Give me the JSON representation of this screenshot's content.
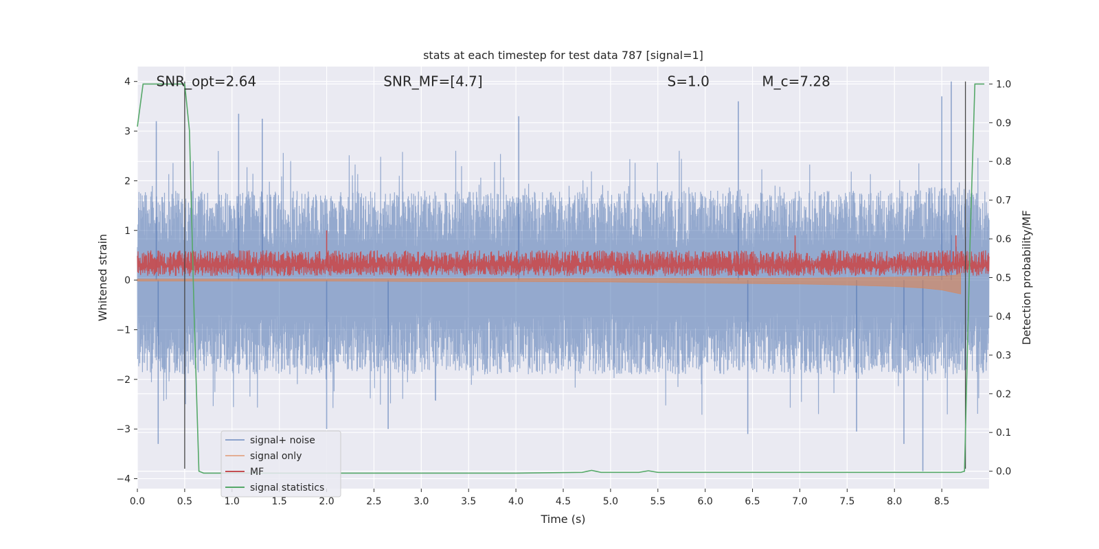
{
  "chart_data": {
    "type": "line",
    "title": "stats at each timestep for test data 787 [signal=1]",
    "xlabel": "Time (s)",
    "ylabel": "Whitened strain",
    "y2label": "Detection probability/MF",
    "xlim": [
      0.0,
      9.0
    ],
    "ylim": [
      -4.2,
      4.3
    ],
    "y2lim": [
      -0.045,
      1.045
    ],
    "x_ticks": [
      "0.0",
      "0.5",
      "1.0",
      "1.5",
      "2.0",
      "2.5",
      "3.0",
      "3.5",
      "4.0",
      "4.5",
      "5.0",
      "5.5",
      "6.0",
      "6.5",
      "7.0",
      "7.5",
      "8.0",
      "8.5"
    ],
    "y_ticks": [
      "4",
      "3",
      "2",
      "1",
      "0",
      "−1",
      "−2",
      "−3",
      "−4"
    ],
    "y2_ticks": [
      "1.0",
      "0.9",
      "0.8",
      "0.7",
      "0.6",
      "0.5",
      "0.4",
      "0.3",
      "0.2",
      "0.1",
      "0.0"
    ],
    "grid": true,
    "legend_position": "lower-left",
    "annotations": [
      {
        "text": "SNR_opt=2.64",
        "x": 0.2,
        "y": 4.0
      },
      {
        "text": "SNR_MF=[4.7]",
        "x": 2.6,
        "y": 4.0
      },
      {
        "text": "S=1.0",
        "x": 5.6,
        "y": 4.0
      },
      {
        "text": "M_c=7.28",
        "x": 6.6,
        "y": 4.0
      }
    ],
    "vlines": [
      {
        "x": 0.5,
        "y_from": -3.8,
        "y_to": 4.0
      },
      {
        "x": 8.75,
        "y_from": -3.8,
        "y_to": 4.0
      }
    ],
    "series": [
      {
        "name": "signal+ noise",
        "color": "#4c72b0",
        "axis": "left",
        "style": "noise envelope",
        "x": [
          0.0,
          0.5,
          1.0,
          1.5,
          2.0,
          2.5,
          3.0,
          3.5,
          4.0,
          4.5,
          5.0,
          5.5,
          6.0,
          6.5,
          7.0,
          7.5,
          8.0,
          8.5,
          9.0
        ],
        "upper": [
          1.8,
          1.8,
          1.8,
          1.8,
          1.8,
          1.8,
          1.8,
          1.8,
          1.8,
          1.8,
          1.8,
          1.8,
          1.8,
          1.8,
          1.8,
          1.8,
          1.8,
          1.9,
          1.8
        ],
        "lower": [
          -1.9,
          -1.9,
          -1.9,
          -1.9,
          -1.9,
          -1.9,
          -1.9,
          -1.9,
          -1.9,
          -1.9,
          -1.9,
          -1.9,
          -1.9,
          -1.9,
          -1.9,
          -1.9,
          -1.9,
          -1.9,
          -1.9
        ],
        "peaks": [
          {
            "x": 0.2,
            "y": 3.2
          },
          {
            "x": 0.22,
            "y": -3.3
          },
          {
            "x": 1.07,
            "y": 3.35
          },
          {
            "x": 1.32,
            "y": 3.25
          },
          {
            "x": 2.0,
            "y": -3.0
          },
          {
            "x": 2.65,
            "y": -3.0
          },
          {
            "x": 4.03,
            "y": 3.3
          },
          {
            "x": 6.35,
            "y": 3.6
          },
          {
            "x": 6.45,
            "y": -3.1
          },
          {
            "x": 7.6,
            "y": -3.05
          },
          {
            "x": 8.1,
            "y": -3.3
          },
          {
            "x": 8.3,
            "y": -3.85
          },
          {
            "x": 8.5,
            "y": 3.7
          },
          {
            "x": 8.6,
            "y": 4.0
          }
        ]
      },
      {
        "name": "signal only",
        "color": "#dd8452",
        "axis": "left",
        "x": [
          0.0,
          1.0,
          2.0,
          3.0,
          4.0,
          5.0,
          6.0,
          7.0,
          7.5,
          8.0,
          8.3,
          8.5,
          8.65,
          8.7
        ],
        "upper": [
          0.02,
          0.02,
          0.02,
          0.03,
          0.03,
          0.03,
          0.04,
          0.04,
          0.05,
          0.06,
          0.07,
          0.08,
          0.1,
          0.15
        ],
        "lower": [
          -0.02,
          -0.02,
          -0.02,
          -0.03,
          -0.03,
          -0.04,
          -0.06,
          -0.08,
          -0.1,
          -0.13,
          -0.16,
          -0.2,
          -0.26,
          -0.28
        ]
      },
      {
        "name": "MF",
        "color": "#c44e52",
        "axis": "left",
        "mean": 0.3,
        "upper": 0.6,
        "lower": 0.08,
        "peaks": [
          {
            "x": 2.0,
            "y": 1.0
          },
          {
            "x": 6.95,
            "y": 0.9
          },
          {
            "x": 8.65,
            "y": 0.9
          }
        ]
      },
      {
        "name": "signal statistics",
        "color": "#55a868",
        "axis": "right",
        "x": [
          0.0,
          0.06,
          0.1,
          0.45,
          0.5,
          0.55,
          0.6,
          0.65,
          0.7,
          0.8,
          1.0,
          2.0,
          3.0,
          4.0,
          4.7,
          4.8,
          4.9,
          5.0,
          5.3,
          5.4,
          5.5,
          6.0,
          7.0,
          8.0,
          8.7,
          8.74,
          8.8,
          8.85,
          8.95
        ],
        "y": [
          0.89,
          1.0,
          1.0,
          1.0,
          1.0,
          0.88,
          0.4,
          0.0,
          -0.005,
          -0.005,
          -0.005,
          -0.005,
          -0.005,
          -0.005,
          -0.003,
          0.002,
          -0.003,
          -0.003,
          -0.003,
          0.001,
          -0.003,
          -0.003,
          -0.003,
          -0.003,
          -0.003,
          0.0,
          0.6,
          1.0,
          1.0
        ]
      }
    ]
  }
}
